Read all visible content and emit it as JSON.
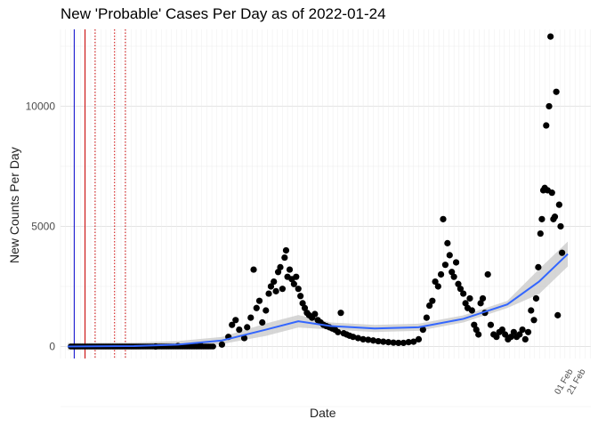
{
  "title": "New 'Probable' Cases Per Day as of 2022-01-24",
  "chart_data": {
    "type": "scatter",
    "title": "New 'Probable' Cases Per Day as of 2022-01-24",
    "xlabel": "Date",
    "ylabel": "New Counts Per Day",
    "xlim": [
      "2020-02-20",
      "2022-02-25"
    ],
    "ylim": [
      -500,
      13200
    ],
    "y_ticks": [
      0,
      5000,
      10000
    ],
    "x_tick_labels_legible": [
      "01 Feb",
      "21 Feb"
    ],
    "grid": true,
    "legend": "none",
    "trend": {
      "method": "smooth",
      "with_confidence_band": true,
      "x": [
        "2020-03-01",
        "2020-06-01",
        "2020-08-01",
        "2020-10-01",
        "2020-12-01",
        "2021-01-15",
        "2021-03-01",
        "2021-05-01",
        "2021-07-01",
        "2021-09-01",
        "2021-11-01",
        "2021-12-15",
        "2022-01-24"
      ],
      "y": [
        0,
        20,
        80,
        250,
        700,
        1050,
        850,
        750,
        800,
        1150,
        1750,
        2700,
        3850
      ]
    },
    "vlines": [
      {
        "x": "2020-03-10",
        "color": "#0000cc",
        "style": "solid"
      },
      {
        "x": "2020-03-25",
        "color": "#cc0000",
        "style": "solid"
      },
      {
        "x": "2020-04-08",
        "color": "#cc0000",
        "style": "dotted"
      },
      {
        "x": "2020-05-05",
        "color": "#cc0000",
        "style": "dotted"
      },
      {
        "x": "2020-05-20",
        "color": "#cc0000",
        "style": "dotted"
      }
    ],
    "points": [
      [
        "2020-07-01",
        0
      ],
      [
        "2020-08-01",
        20
      ],
      [
        "2020-09-01",
        50
      ],
      [
        "2020-10-01",
        80
      ],
      [
        "2020-10-10",
        400
      ],
      [
        "2020-10-15",
        900
      ],
      [
        "2020-10-20",
        1100
      ],
      [
        "2020-10-25",
        700
      ],
      [
        "2020-11-01",
        350
      ],
      [
        "2020-11-05",
        800
      ],
      [
        "2020-11-10",
        1200
      ],
      [
        "2020-11-14",
        3200
      ],
      [
        "2020-11-18",
        1600
      ],
      [
        "2020-11-22",
        1900
      ],
      [
        "2020-11-26",
        1000
      ],
      [
        "2020-12-01",
        1500
      ],
      [
        "2020-12-05",
        2200
      ],
      [
        "2020-12-08",
        2500
      ],
      [
        "2020-12-12",
        2700
      ],
      [
        "2020-12-15",
        2300
      ],
      [
        "2020-12-18",
        3100
      ],
      [
        "2020-12-21",
        3300
      ],
      [
        "2020-12-24",
        2400
      ],
      [
        "2020-12-27",
        3700
      ],
      [
        "2020-12-29",
        4000
      ],
      [
        "2020-12-31",
        2900
      ],
      [
        "2021-01-03",
        3200
      ],
      [
        "2021-01-06",
        2800
      ],
      [
        "2021-01-09",
        2600
      ],
      [
        "2021-01-12",
        2900
      ],
      [
        "2021-01-15",
        2400
      ],
      [
        "2021-01-18",
        2100
      ],
      [
        "2021-01-21",
        1800
      ],
      [
        "2021-01-24",
        1600
      ],
      [
        "2021-01-27",
        1400
      ],
      [
        "2021-01-30",
        1300
      ],
      [
        "2021-02-03",
        1200
      ],
      [
        "2021-02-07",
        1350
      ],
      [
        "2021-02-11",
        1100
      ],
      [
        "2021-02-15",
        1000
      ],
      [
        "2021-02-19",
        900
      ],
      [
        "2021-02-23",
        850
      ],
      [
        "2021-02-27",
        800
      ],
      [
        "2021-03-03",
        750
      ],
      [
        "2021-03-07",
        700
      ],
      [
        "2021-03-11",
        600
      ],
      [
        "2021-03-15",
        1400
      ],
      [
        "2021-03-19",
        550
      ],
      [
        "2021-03-23",
        500
      ],
      [
        "2021-03-27",
        450
      ],
      [
        "2021-04-01",
        400
      ],
      [
        "2021-04-08",
        350
      ],
      [
        "2021-04-15",
        300
      ],
      [
        "2021-04-22",
        280
      ],
      [
        "2021-04-29",
        250
      ],
      [
        "2021-05-06",
        220
      ],
      [
        "2021-05-13",
        200
      ],
      [
        "2021-05-20",
        180
      ],
      [
        "2021-05-27",
        160
      ],
      [
        "2021-06-03",
        150
      ],
      [
        "2021-06-10",
        150
      ],
      [
        "2021-06-17",
        180
      ],
      [
        "2021-06-24",
        200
      ],
      [
        "2021-07-01",
        300
      ],
      [
        "2021-07-07",
        700
      ],
      [
        "2021-07-12",
        1200
      ],
      [
        "2021-07-16",
        1700
      ],
      [
        "2021-07-20",
        1900
      ],
      [
        "2021-07-24",
        2700
      ],
      [
        "2021-07-28",
        2500
      ],
      [
        "2021-08-01",
        3000
      ],
      [
        "2021-08-04",
        5300
      ],
      [
        "2021-08-07",
        3400
      ],
      [
        "2021-08-10",
        4300
      ],
      [
        "2021-08-13",
        3800
      ],
      [
        "2021-08-16",
        3100
      ],
      [
        "2021-08-19",
        2900
      ],
      [
        "2021-08-22",
        3500
      ],
      [
        "2021-08-25",
        2600
      ],
      [
        "2021-08-28",
        2400
      ],
      [
        "2021-09-01",
        2200
      ],
      [
        "2021-09-04",
        1800
      ],
      [
        "2021-09-07",
        1600
      ],
      [
        "2021-09-10",
        2000
      ],
      [
        "2021-09-13",
        1500
      ],
      [
        "2021-09-16",
        900
      ],
      [
        "2021-09-19",
        700
      ],
      [
        "2021-09-22",
        500
      ],
      [
        "2021-09-25",
        1800
      ],
      [
        "2021-09-28",
        2000
      ],
      [
        "2021-10-01",
        1400
      ],
      [
        "2021-10-05",
        3000
      ],
      [
        "2021-10-09",
        900
      ],
      [
        "2021-10-13",
        500
      ],
      [
        "2021-10-17",
        400
      ],
      [
        "2021-10-21",
        600
      ],
      [
        "2021-10-25",
        700
      ],
      [
        "2021-10-29",
        500
      ],
      [
        "2021-11-02",
        300
      ],
      [
        "2021-11-06",
        400
      ],
      [
        "2021-11-10",
        600
      ],
      [
        "2021-11-14",
        400
      ],
      [
        "2021-11-18",
        500
      ],
      [
        "2021-11-22",
        700
      ],
      [
        "2021-11-26",
        300
      ],
      [
        "2021-11-30",
        600
      ],
      [
        "2021-12-04",
        1500
      ],
      [
        "2021-12-08",
        1100
      ],
      [
        "2021-12-11",
        2000
      ],
      [
        "2021-12-14",
        3300
      ],
      [
        "2021-12-17",
        4700
      ],
      [
        "2021-12-19",
        5300
      ],
      [
        "2021-12-21",
        6500
      ],
      [
        "2021-12-23",
        6600
      ],
      [
        "2021-12-25",
        9200
      ],
      [
        "2021-12-27",
        6500
      ],
      [
        "2021-12-29",
        10000
      ],
      [
        "2021-12-31",
        12900
      ],
      [
        "2022-01-02",
        6400
      ],
      [
        "2022-01-04",
        5300
      ],
      [
        "2022-01-06",
        5400
      ],
      [
        "2022-01-08",
        10600
      ],
      [
        "2022-01-10",
        1300
      ],
      [
        "2022-01-12",
        5900
      ],
      [
        "2022-01-14",
        5000
      ],
      [
        "2022-01-16",
        3900
      ]
    ]
  }
}
